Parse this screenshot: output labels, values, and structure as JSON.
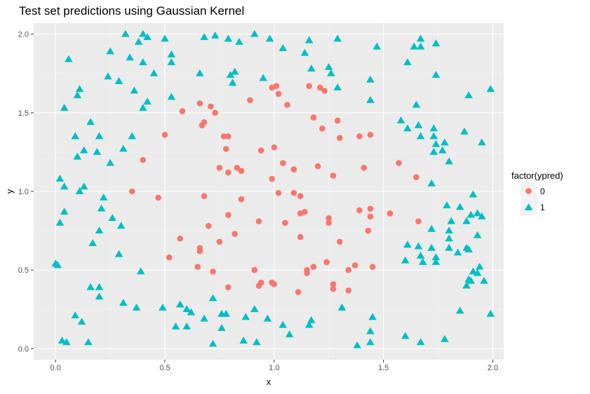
{
  "chart_data": {
    "type": "scatter",
    "title": "Test set predictions using Gaussian Kernel",
    "xlabel": "x",
    "ylabel": "y",
    "xlim": [
      -0.1,
      2.05
    ],
    "ylim": [
      -0.07,
      2.07
    ],
    "x_ticks": [
      0.0,
      0.5,
      1.0,
      1.5,
      2.0
    ],
    "x_tick_labels": [
      "0.0",
      "0.5",
      "1.0",
      "1.5",
      "2.0"
    ],
    "y_ticks": [
      0.0,
      0.5,
      1.0,
      1.5,
      2.0
    ],
    "y_tick_labels": [
      "0.0",
      "0.5",
      "1.0",
      "1.5",
      "2.0"
    ],
    "grid": true,
    "panel_background": "#ebebeb",
    "legend": {
      "title": "factor(ypred)",
      "position": "right",
      "entries": [
        {
          "label": "0",
          "color": "#f8766d",
          "shape": "circle"
        },
        {
          "label": "1",
          "color": "#00bfc4",
          "shape": "triangle"
        }
      ]
    },
    "series": [
      {
        "name": "0",
        "color": "#f8766d",
        "shape": "circle",
        "points": [
          [
            0.4,
            1.2
          ],
          [
            0.5,
            1.36
          ],
          [
            0.58,
            1.51
          ],
          [
            0.66,
            1.56
          ],
          [
            0.67,
            1.42
          ],
          [
            0.68,
            1.44
          ],
          [
            0.71,
            1.54
          ],
          [
            0.73,
            1.5
          ],
          [
            0.77,
            1.35
          ],
          [
            0.79,
            1.35
          ],
          [
            0.75,
            1.15
          ],
          [
            0.78,
            1.27
          ],
          [
            0.79,
            1.12
          ],
          [
            0.83,
            1.15
          ],
          [
            0.85,
            1.13
          ],
          [
            0.89,
            1.58
          ],
          [
            0.99,
            1.66
          ],
          [
            1.01,
            1.67
          ],
          [
            1.02,
            1.62
          ],
          [
            1.06,
            1.55
          ],
          [
            1.16,
            1.67
          ],
          [
            1.21,
            1.66
          ],
          [
            1.23,
            1.64
          ],
          [
            1.18,
            1.47
          ],
          [
            1.22,
            1.4
          ],
          [
            1.29,
            1.45
          ],
          [
            1.3,
            1.34
          ],
          [
            1.39,
            1.35
          ],
          [
            1.44,
            1.36
          ],
          [
            0.94,
            1.26
          ],
          [
            1.0,
            1.28
          ],
          [
            1.04,
            1.18
          ],
          [
            1.09,
            1.14
          ],
          [
            1.2,
            1.16
          ],
          [
            1.27,
            1.1
          ],
          [
            1.41,
            1.15
          ],
          [
            1.57,
            1.18
          ],
          [
            1.65,
            1.09
          ],
          [
            0.35,
            1.0
          ],
          [
            0.47,
            0.96
          ],
          [
            0.68,
            0.97
          ],
          [
            0.85,
            0.95
          ],
          [
            0.99,
            1.08
          ],
          [
            1.02,
            0.99
          ],
          [
            1.09,
            0.99
          ],
          [
            1.12,
            0.97
          ],
          [
            1.14,
            0.87
          ],
          [
            1.39,
            0.88
          ],
          [
            1.44,
            0.89
          ],
          [
            1.44,
            0.84
          ],
          [
            1.53,
            0.86
          ],
          [
            1.66,
            0.81
          ],
          [
            0.7,
            0.78
          ],
          [
            0.79,
            0.85
          ],
          [
            0.82,
            0.73
          ],
          [
            0.93,
            0.81
          ],
          [
            1.05,
            0.8
          ],
          [
            1.12,
            0.86
          ],
          [
            1.25,
            0.83
          ],
          [
            1.25,
            0.8
          ],
          [
            1.43,
            0.75
          ],
          [
            1.12,
            0.71
          ],
          [
            0.57,
            0.7
          ],
          [
            0.66,
            0.64
          ],
          [
            0.66,
            0.62
          ],
          [
            0.75,
            0.68
          ],
          [
            0.52,
            0.58
          ],
          [
            0.65,
            0.52
          ],
          [
            0.72,
            0.49
          ],
          [
            0.79,
            0.39
          ],
          [
            0.91,
            0.5
          ],
          [
            0.93,
            0.4
          ],
          [
            0.94,
            0.42
          ],
          [
            0.99,
            0.42
          ],
          [
            1.0,
            0.41
          ],
          [
            1.11,
            0.36
          ],
          [
            1.15,
            0.48
          ],
          [
            1.15,
            0.5
          ],
          [
            1.18,
            0.52
          ],
          [
            1.24,
            0.55
          ],
          [
            1.27,
            0.41
          ],
          [
            1.3,
            0.68
          ],
          [
            1.34,
            0.5
          ],
          [
            1.37,
            0.53
          ],
          [
            1.34,
            0.37
          ],
          [
            1.45,
            0.52
          ],
          [
            1.27,
            0.38
          ]
        ]
      },
      {
        "name": "1",
        "color": "#00bfc4",
        "shape": "triangle",
        "points": [
          [
            0.32,
            2.0
          ],
          [
            0.4,
            2.0
          ],
          [
            0.42,
            1.98
          ],
          [
            0.5,
            1.97
          ],
          [
            0.38,
            1.95
          ],
          [
            0.53,
            1.87
          ],
          [
            0.68,
            1.98
          ],
          [
            0.73,
            1.99
          ],
          [
            0.79,
            1.97
          ],
          [
            0.84,
            1.95
          ],
          [
            0.91,
            2.0
          ],
          [
            0.98,
            1.97
          ],
          [
            1.16,
            1.96
          ],
          [
            1.29,
            1.97
          ],
          [
            1.04,
            1.91
          ],
          [
            1.14,
            1.88
          ],
          [
            0.06,
            1.84
          ],
          [
            0.25,
            1.89
          ],
          [
            0.34,
            1.85
          ],
          [
            0.4,
            1.82
          ],
          [
            0.53,
            1.82
          ],
          [
            0.45,
            1.75
          ],
          [
            0.66,
            1.75
          ],
          [
            0.8,
            1.74
          ],
          [
            0.81,
            1.69
          ],
          [
            0.82,
            1.76
          ],
          [
            0.95,
            1.72
          ],
          [
            1.17,
            1.78
          ],
          [
            1.25,
            1.79
          ],
          [
            1.26,
            1.75
          ],
          [
            1.29,
            1.66
          ],
          [
            1.44,
            1.71
          ],
          [
            1.47,
            1.92
          ],
          [
            1.64,
            1.92
          ],
          [
            1.67,
            1.97
          ],
          [
            1.67,
            1.92
          ],
          [
            1.74,
            1.94
          ],
          [
            1.61,
            1.82
          ],
          [
            1.74,
            1.74
          ],
          [
            1.99,
            1.65
          ],
          [
            0.1,
            1.61
          ],
          [
            0.11,
            1.65
          ],
          [
            0.24,
            1.73
          ],
          [
            0.29,
            1.7
          ],
          [
            0.36,
            1.64
          ],
          [
            0.42,
            1.57
          ],
          [
            0.4,
            1.53
          ],
          [
            0.53,
            1.6
          ],
          [
            0.04,
            1.53
          ],
          [
            0.16,
            1.44
          ],
          [
            0.09,
            1.35
          ],
          [
            0.2,
            1.35
          ],
          [
            0.1,
            1.22
          ],
          [
            0.13,
            1.26
          ],
          [
            0.19,
            1.25
          ],
          [
            0.25,
            1.18
          ],
          [
            0.31,
            1.27
          ],
          [
            0.35,
            1.35
          ],
          [
            1.44,
            1.58
          ],
          [
            1.58,
            1.45
          ],
          [
            1.61,
            1.4
          ],
          [
            1.65,
            1.55
          ],
          [
            1.66,
            1.42
          ],
          [
            1.67,
            1.35
          ],
          [
            1.73,
            1.4
          ],
          [
            1.73,
            1.35
          ],
          [
            1.74,
            1.3
          ],
          [
            1.78,
            1.31
          ],
          [
            1.73,
            1.25
          ],
          [
            1.77,
            1.26
          ],
          [
            1.87,
            1.38
          ],
          [
            1.89,
            1.61
          ],
          [
            1.95,
            1.31
          ],
          [
            1.8,
            1.19
          ],
          [
            1.72,
            1.05
          ],
          [
            0.02,
            1.08
          ],
          [
            0.04,
            1.03
          ],
          [
            0.11,
            1.0
          ],
          [
            0.13,
            1.03
          ],
          [
            0.22,
            0.96
          ],
          [
            0.21,
            0.89
          ],
          [
            0.04,
            0.87
          ],
          [
            0.02,
            0.8
          ],
          [
            0.2,
            0.75
          ],
          [
            0.26,
            0.83
          ],
          [
            0.3,
            0.78
          ],
          [
            0.17,
            0.67
          ],
          [
            0.29,
            0.6
          ],
          [
            0.39,
            0.49
          ],
          [
            0.0,
            0.54
          ],
          [
            0.01,
            0.53
          ],
          [
            1.79,
            0.91
          ],
          [
            1.85,
            0.9
          ],
          [
            1.81,
            0.81
          ],
          [
            1.88,
            0.81
          ],
          [
            1.8,
            0.7
          ],
          [
            1.9,
            0.85
          ],
          [
            1.95,
            0.84
          ],
          [
            1.93,
            0.86
          ],
          [
            1.93,
            0.72
          ],
          [
            1.91,
            0.98
          ],
          [
            1.72,
            0.76
          ],
          [
            1.8,
            0.75
          ],
          [
            1.61,
            0.66
          ],
          [
            1.66,
            0.65
          ],
          [
            1.72,
            0.64
          ],
          [
            1.67,
            0.59
          ],
          [
            1.74,
            0.58
          ],
          [
            1.74,
            0.55
          ],
          [
            1.68,
            0.55
          ],
          [
            1.6,
            0.56
          ],
          [
            1.8,
            0.64
          ],
          [
            1.84,
            0.61
          ],
          [
            1.88,
            0.64
          ],
          [
            1.89,
            0.63
          ],
          [
            1.91,
            0.49
          ],
          [
            1.93,
            0.48
          ],
          [
            1.94,
            0.52
          ],
          [
            1.89,
            0.44
          ],
          [
            1.9,
            0.43
          ],
          [
            1.88,
            0.4
          ],
          [
            1.96,
            0.43
          ],
          [
            1.99,
            0.22
          ],
          [
            1.85,
            0.24
          ],
          [
            1.6,
            0.08
          ],
          [
            1.67,
            0.04
          ],
          [
            1.78,
            0.06
          ],
          [
            0.16,
            0.39
          ],
          [
            0.2,
            0.39
          ],
          [
            0.2,
            0.33
          ],
          [
            0.31,
            0.29
          ],
          [
            0.37,
            0.26
          ],
          [
            0.49,
            0.26
          ],
          [
            0.57,
            0.28
          ],
          [
            0.6,
            0.25
          ],
          [
            0.62,
            0.23
          ],
          [
            0.68,
            0.19
          ],
          [
            0.72,
            0.32
          ],
          [
            0.76,
            0.22
          ],
          [
            0.78,
            0.22
          ],
          [
            0.87,
            0.2
          ],
          [
            0.91,
            0.25
          ],
          [
            0.97,
            0.19
          ],
          [
            1.04,
            0.15
          ],
          [
            1.16,
            0.15
          ],
          [
            1.17,
            0.18
          ],
          [
            1.31,
            0.26
          ],
          [
            1.45,
            0.2
          ],
          [
            1.44,
            0.11
          ],
          [
            1.38,
            0.02
          ],
          [
            1.44,
            0.04
          ],
          [
            0.09,
            0.21
          ],
          [
            0.12,
            0.17
          ],
          [
            0.03,
            0.05
          ],
          [
            0.05,
            0.04
          ],
          [
            0.15,
            0.04
          ],
          [
            0.55,
            0.14
          ],
          [
            0.6,
            0.14
          ],
          [
            0.72,
            0.03
          ],
          [
            0.76,
            0.13
          ],
          [
            0.86,
            0.05
          ],
          [
            0.92,
            0.04
          ],
          [
            1.07,
            0.09
          ]
        ]
      }
    ]
  }
}
